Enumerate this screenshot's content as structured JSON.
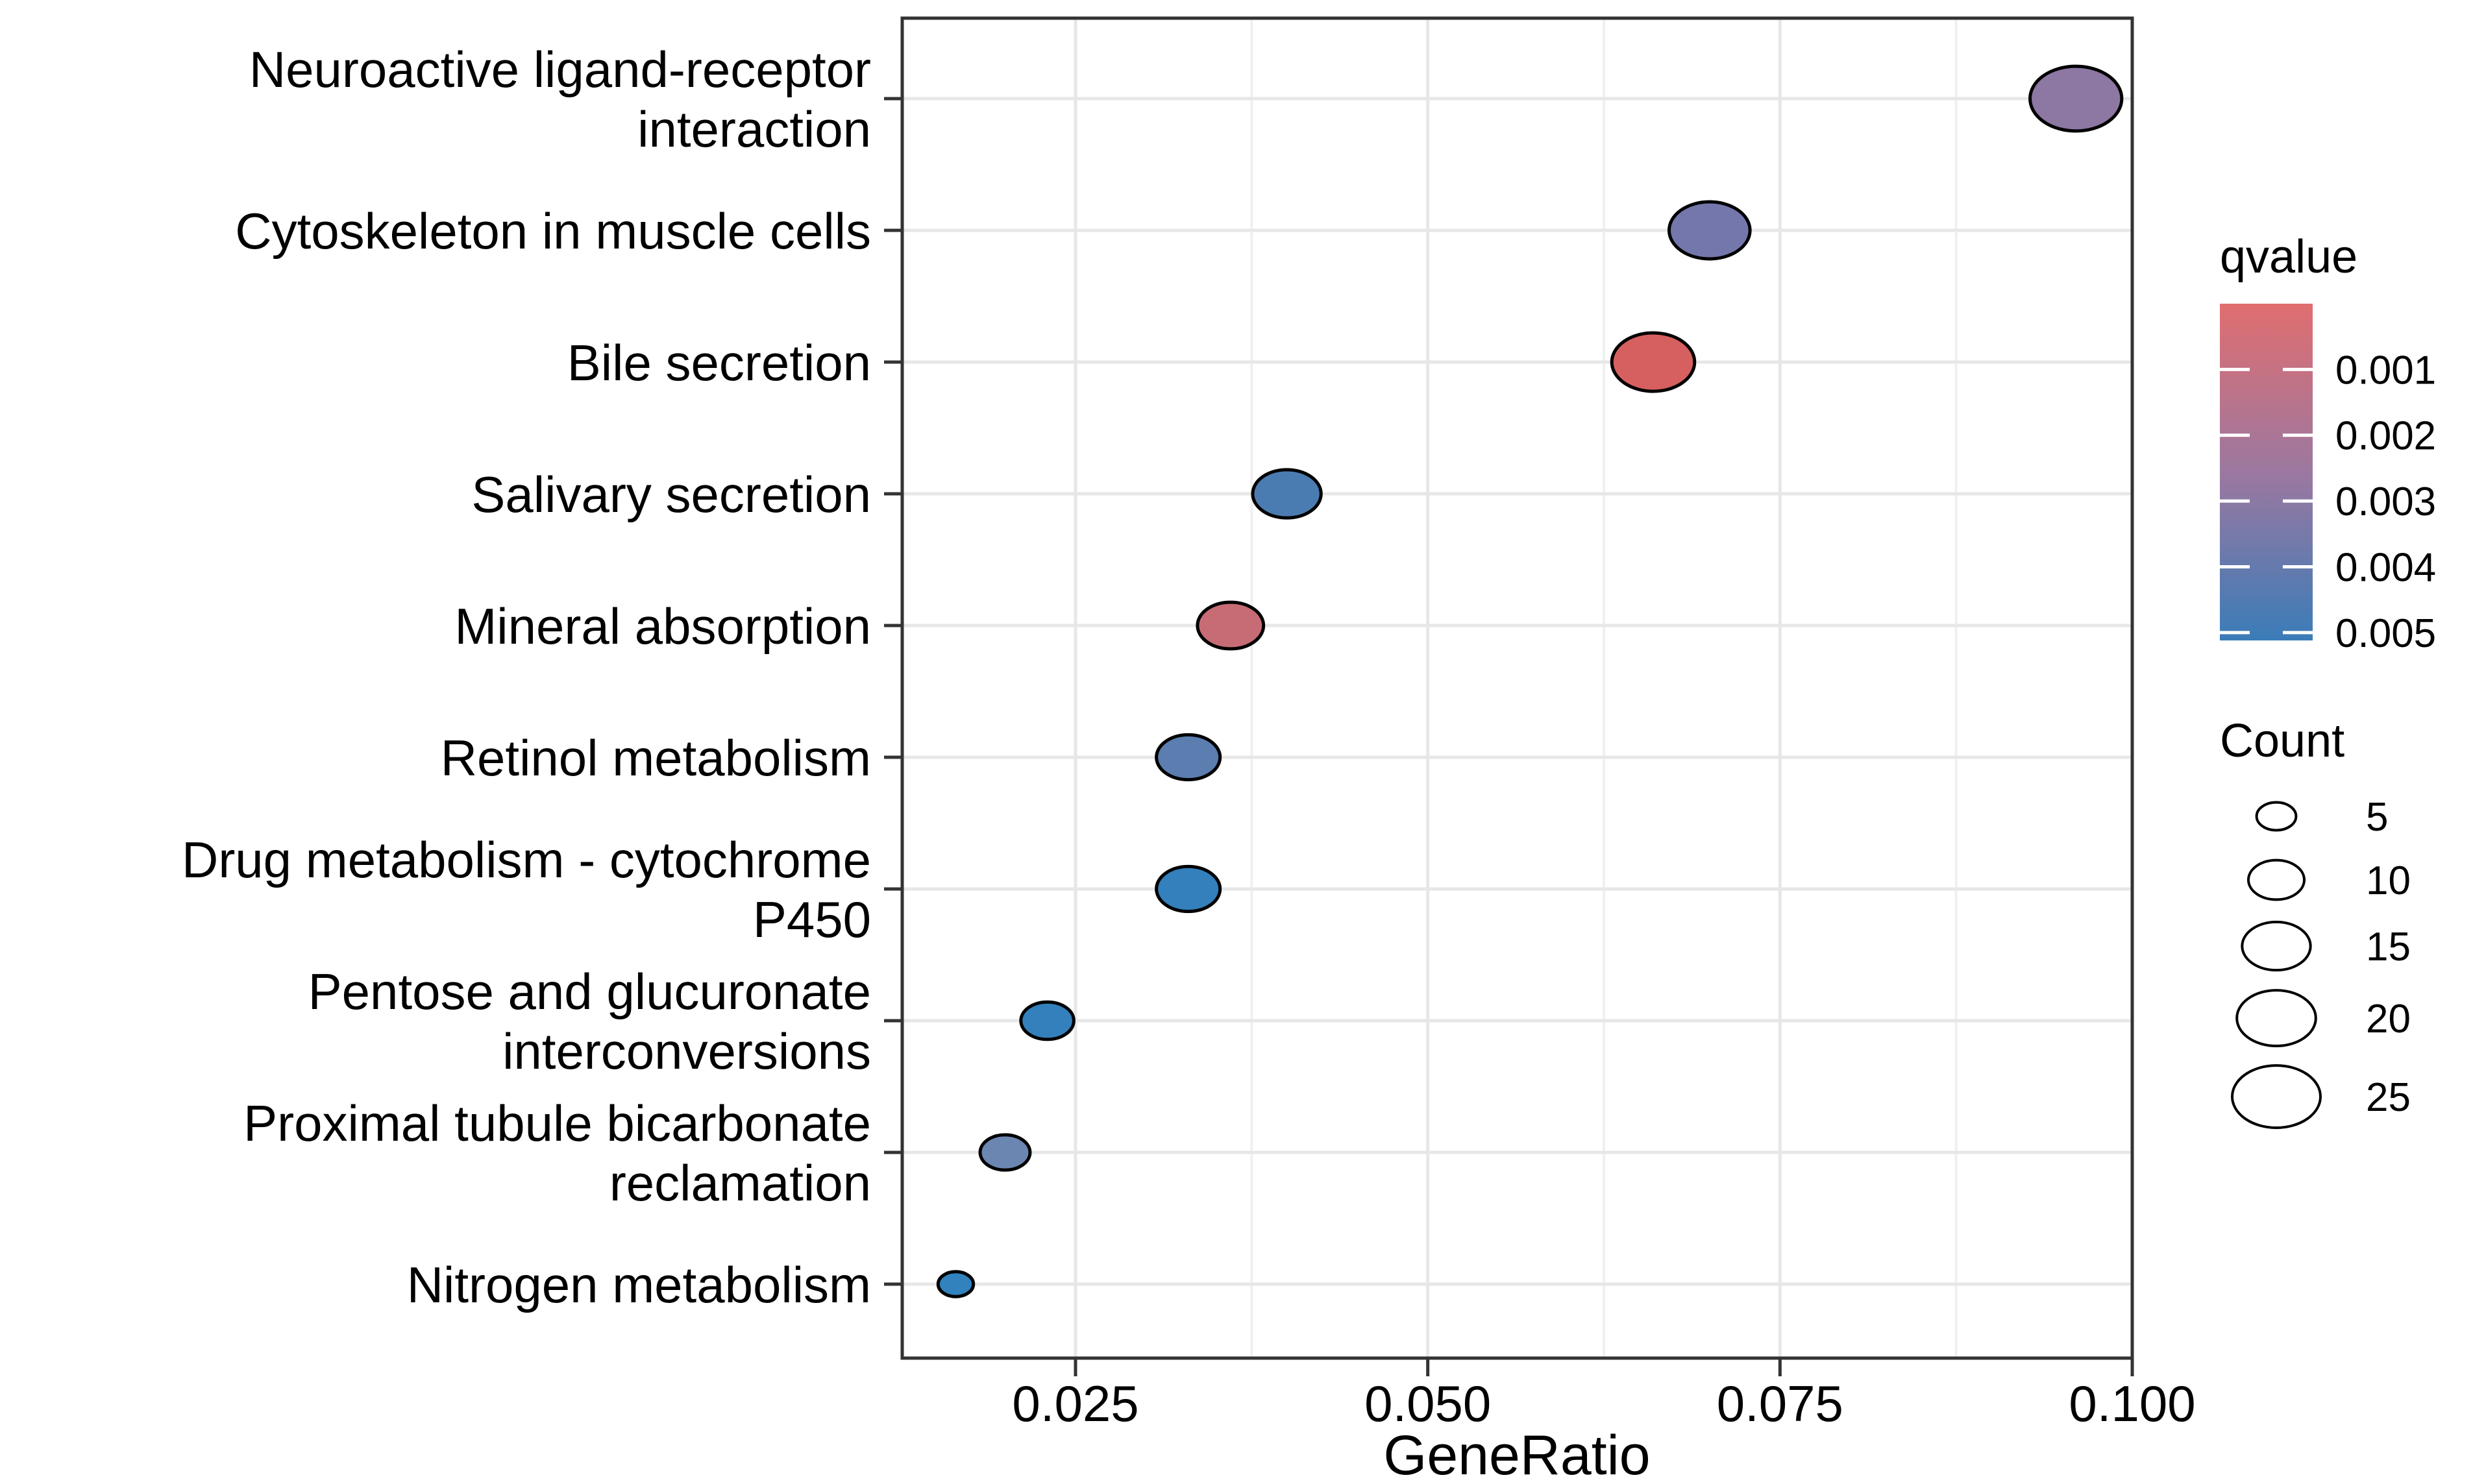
{
  "chart_data": {
    "type": "scatter",
    "variant": "enrichment-dotplot",
    "title": "",
    "xlabel": "GeneRatio",
    "ylabel": "",
    "x_ticks": [
      0.025,
      0.05,
      0.075,
      0.1
    ],
    "x_tick_labels": [
      "0.025",
      "0.050",
      "0.075",
      "0.100"
    ],
    "xlim": [
      0.0127,
      0.1
    ],
    "grid": "vertical major+minor, horizontal major",
    "legend_position": "right",
    "points": [
      {
        "pathway": "Neuroactive ligand-receptor interaction",
        "label_lines": [
          "Neuroactive ligand-receptor",
          "interaction"
        ],
        "gene_ratio": 0.096,
        "count": 27,
        "qvalue": 0.0026,
        "fill": "#8D77A3"
      },
      {
        "pathway": "Cytoskeleton in muscle cells",
        "label_lines": [
          "Cytoskeleton in muscle cells"
        ],
        "gene_ratio": 0.07,
        "count": 21,
        "qvalue": 0.0033,
        "fill": "#7477AB"
      },
      {
        "pathway": "Bile secretion",
        "label_lines": [
          "Bile secretion"
        ],
        "gene_ratio": 0.066,
        "count": 22,
        "qvalue": 0.0003,
        "fill": "#D66060"
      },
      {
        "pathway": "Salivary secretion",
        "label_lines": [
          "Salivary secretion"
        ],
        "gene_ratio": 0.04,
        "count": 15,
        "qvalue": 0.0046,
        "fill": "#4B7CB1"
      },
      {
        "pathway": "Mineral absorption",
        "label_lines": [
          "Mineral absorption"
        ],
        "gene_ratio": 0.036,
        "count": 14,
        "qvalue": 0.0008,
        "fill": "#C76C75"
      },
      {
        "pathway": "Retinol metabolism",
        "label_lines": [
          "Retinol metabolism"
        ],
        "gene_ratio": 0.033,
        "count": 13,
        "qvalue": 0.0041,
        "fill": "#5B7DAF"
      },
      {
        "pathway": "Drug metabolism - cytochrome P450",
        "label_lines": [
          "Drug metabolism - cytochrome",
          "P450"
        ],
        "gene_ratio": 0.033,
        "count": 13,
        "qvalue": 0.0051,
        "fill": "#3380BC"
      },
      {
        "pathway": "Pentose and glucuronate interconversions",
        "label_lines": [
          "Pentose and glucuronate",
          "interconversions"
        ],
        "gene_ratio": 0.023,
        "count": 9,
        "qvalue": 0.0051,
        "fill": "#3380BC"
      },
      {
        "pathway": "Proximal tubule bicarbonate reclamation",
        "label_lines": [
          "Proximal tubule bicarbonate",
          "reclamation"
        ],
        "gene_ratio": 0.02,
        "count": 8,
        "qvalue": 0.0036,
        "fill": "#6C86B2"
      },
      {
        "pathway": "Nitrogen metabolism",
        "label_lines": [
          "Nitrogen metabolism"
        ],
        "gene_ratio": 0.0165,
        "count": 4,
        "qvalue": 0.0051,
        "fill": "#3182BD"
      }
    ],
    "color_legend": {
      "title": "qvalue",
      "tick_values": [
        0.001,
        0.002,
        0.003,
        0.004,
        0.005
      ],
      "tick_labels": [
        "0.001",
        "0.002",
        "0.003",
        "0.004",
        "0.005"
      ],
      "bar_domain": [
        0.0,
        0.00512
      ],
      "gradient_top": "#E06E70",
      "gradient_mid": "#9C78A0",
      "gradient_bottom": "#3A7CB8"
    },
    "size_legend": {
      "title": "Count",
      "values": [
        5,
        10,
        15,
        20,
        25
      ],
      "labels": [
        "5",
        "10",
        "15",
        "20",
        "25"
      ]
    },
    "colors": {
      "background": "#FFFFFF",
      "panel_border": "#333333",
      "grid_major": "#E7E7E7",
      "grid_minor": "#F0F0F0",
      "tick": "#333333",
      "text": "#000000",
      "point_stroke": "#000000"
    }
  }
}
